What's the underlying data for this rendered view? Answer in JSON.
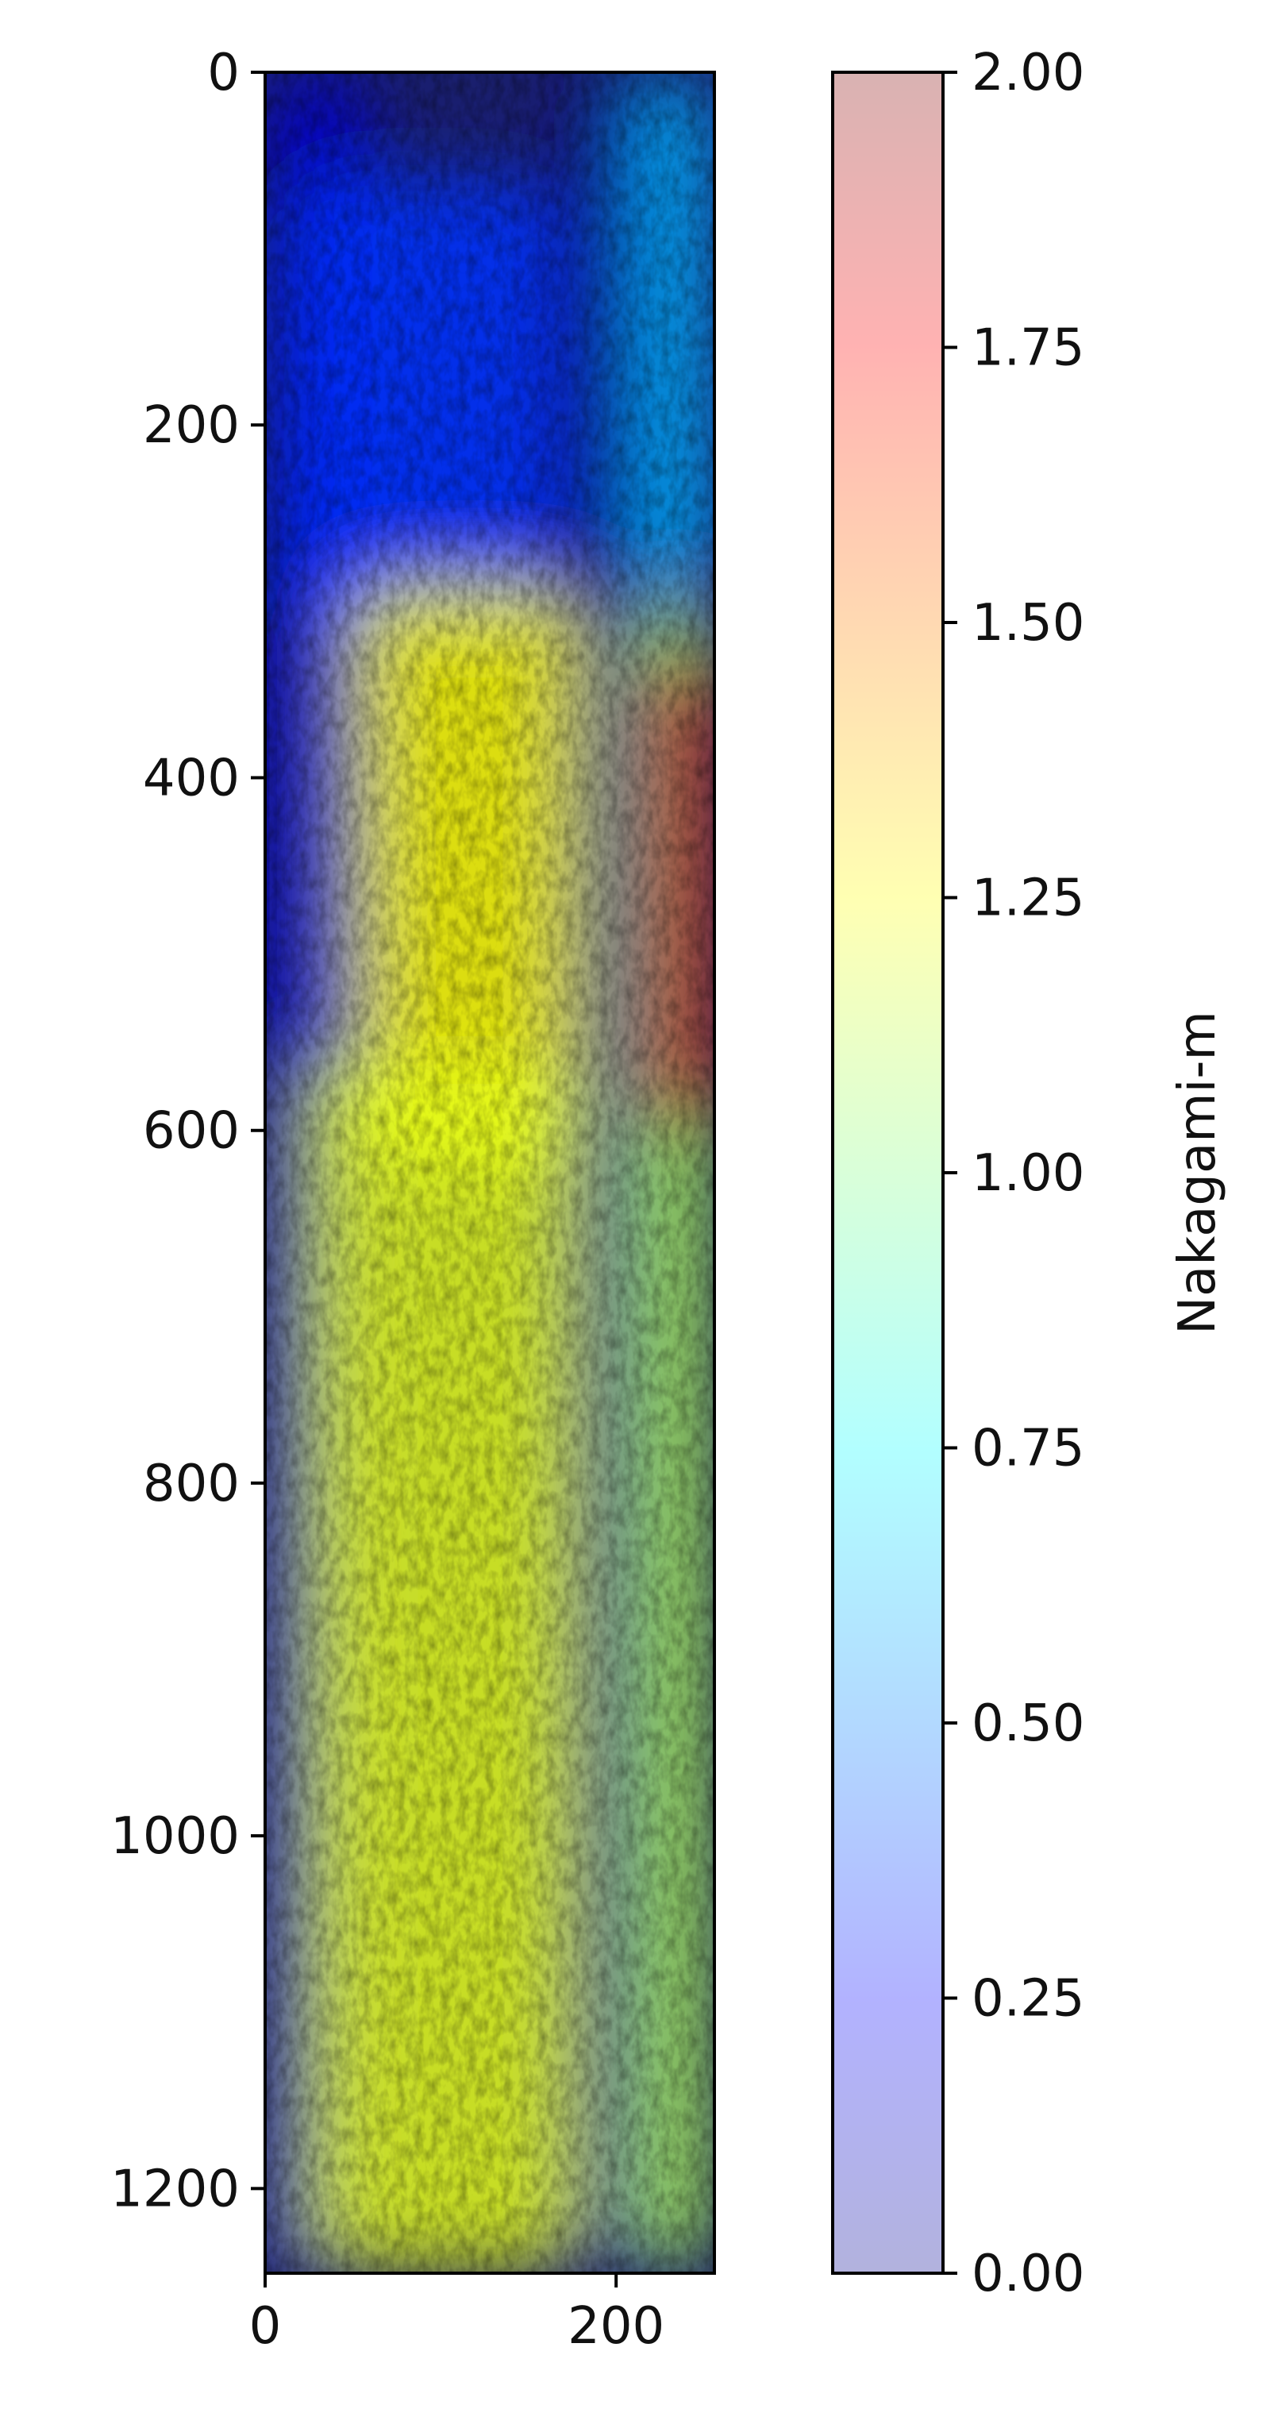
{
  "chart_data": {
    "type": "heatmap",
    "description_note": "",
    "title": "",
    "xlabel": "",
    "ylabel": "",
    "x_range": [
      0,
      256
    ],
    "y_range": [
      1248,
      0
    ],
    "y_inverted": true,
    "x_ticks": [
      0,
      200
    ],
    "x_tick_labels": [
      "0",
      "200"
    ],
    "y_ticks": [
      0,
      200,
      400,
      600,
      800,
      1000,
      1200
    ],
    "y_tick_labels": [
      "0",
      "200",
      "400",
      "600",
      "800",
      "1000",
      "1200"
    ],
    "colorbar": {
      "label": "Nakagami-m",
      "range": [
        0.0,
        2.0
      ],
      "colormap": "jet",
      "ticks": [
        0.0,
        0.25,
        0.5,
        0.75,
        1.0,
        1.25,
        1.5,
        1.75,
        2.0
      ],
      "tick_labels": [
        "0.00",
        "0.25",
        "0.50",
        "0.75",
        "1.00",
        "1.25",
        "1.50",
        "1.75",
        "2.00"
      ],
      "colors": [
        "#00008f",
        "#0000ff",
        "#0080ff",
        "#00ffff",
        "#80ff80",
        "#ffff00",
        "#ff8000",
        "#ff0000",
        "#800000"
      ],
      "alpha": 0.3
    },
    "grid": false,
    "layers": [
      {
        "x": [
          0,
          60
        ],
        "y": [
          0,
          1248
        ],
        "value": 0.15
      },
      {
        "x": [
          15,
          170
        ],
        "y": [
          60,
          320
        ],
        "value": 0.35
      },
      {
        "x": [
          50,
          180
        ],
        "y": [
          290,
          620
        ],
        "value": 1.25
      },
      {
        "x": [
          20,
          180
        ],
        "y": [
          560,
          1248
        ],
        "value": 1.2
      },
      {
        "x": [
          180,
          210
        ],
        "y": [
          0,
          1248
        ],
        "value": 0.05
      },
      {
        "x": [
          210,
          256
        ],
        "y": [
          0,
          300
        ],
        "value": 0.6
      },
      {
        "x": [
          210,
          256
        ],
        "y": [
          300,
          1248
        ],
        "value": 1.1
      },
      {
        "x": [
          220,
          256
        ],
        "y": [
          330,
          600
        ],
        "value": 1.85
      }
    ]
  }
}
